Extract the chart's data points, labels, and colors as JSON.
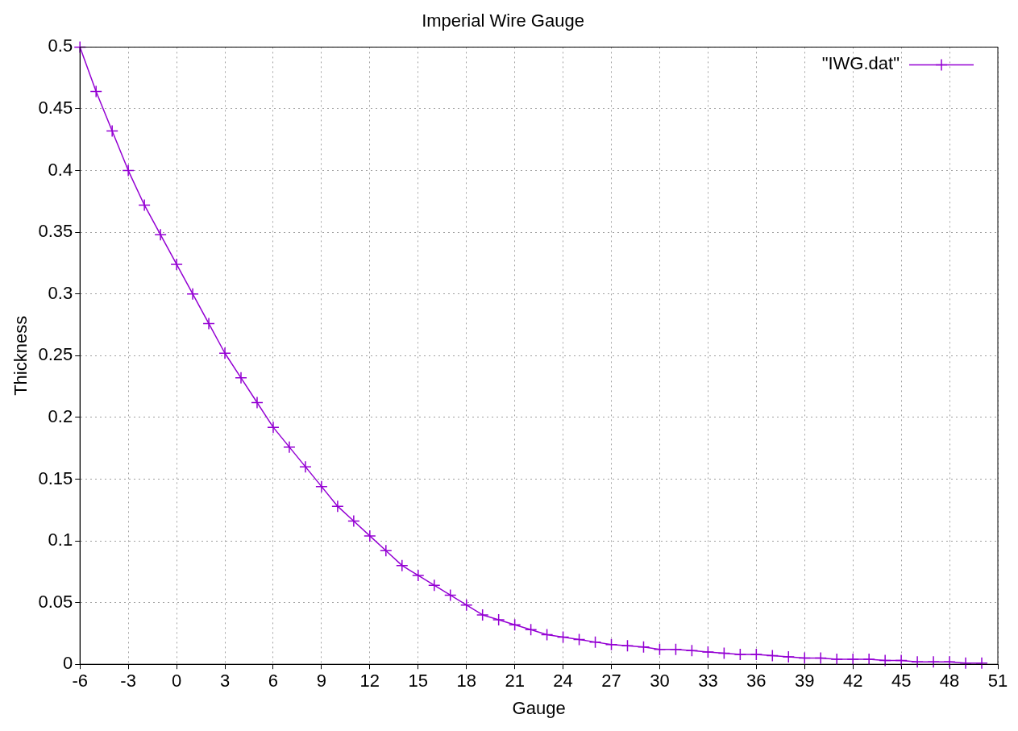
{
  "chart_data": {
    "type": "line",
    "title": "Imperial Wire Gauge",
    "xlabel": "Gauge",
    "ylabel": "Thickness",
    "x": [
      -6,
      -5,
      -4,
      -3,
      -2,
      -1,
      0,
      1,
      2,
      3,
      4,
      5,
      6,
      7,
      8,
      9,
      10,
      11,
      12,
      13,
      14,
      15,
      16,
      17,
      18,
      19,
      20,
      21,
      22,
      23,
      24,
      25,
      26,
      27,
      28,
      29,
      30,
      31,
      32,
      33,
      34,
      35,
      36,
      37,
      38,
      39,
      40,
      41,
      42,
      43,
      44,
      45,
      46,
      47,
      48,
      49,
      50
    ],
    "series": [
      {
        "name": "\"IWG.dat\"",
        "color": "#9400d3",
        "values": [
          0.5,
          0.464,
          0.432,
          0.4,
          0.372,
          0.348,
          0.324,
          0.3,
          0.276,
          0.252,
          0.232,
          0.212,
          0.192,
          0.176,
          0.16,
          0.144,
          0.128,
          0.116,
          0.104,
          0.092,
          0.08,
          0.072,
          0.064,
          0.056,
          0.048,
          0.04,
          0.036,
          0.032,
          0.028,
          0.024,
          0.022,
          0.02,
          0.018,
          0.016,
          0.015,
          0.014,
          0.012,
          0.012,
          0.011,
          0.01,
          0.009,
          0.008,
          0.008,
          0.007,
          0.006,
          0.005,
          0.005,
          0.004,
          0.004,
          0.004,
          0.003,
          0.003,
          0.002,
          0.002,
          0.002,
          0.001,
          0.001
        ]
      }
    ],
    "xlim": [
      -6,
      51
    ],
    "ylim": [
      0,
      0.5
    ],
    "xticks": [
      -6,
      -3,
      0,
      3,
      6,
      9,
      12,
      15,
      18,
      21,
      24,
      27,
      30,
      33,
      36,
      39,
      42,
      45,
      48,
      51
    ],
    "yticks": [
      0,
      0.05,
      0.1,
      0.15,
      0.2,
      0.25,
      0.3,
      0.35,
      0.4,
      0.45,
      0.5
    ],
    "grid": true,
    "legend": "top right",
    "marker": "cross",
    "line_style": "solid"
  }
}
